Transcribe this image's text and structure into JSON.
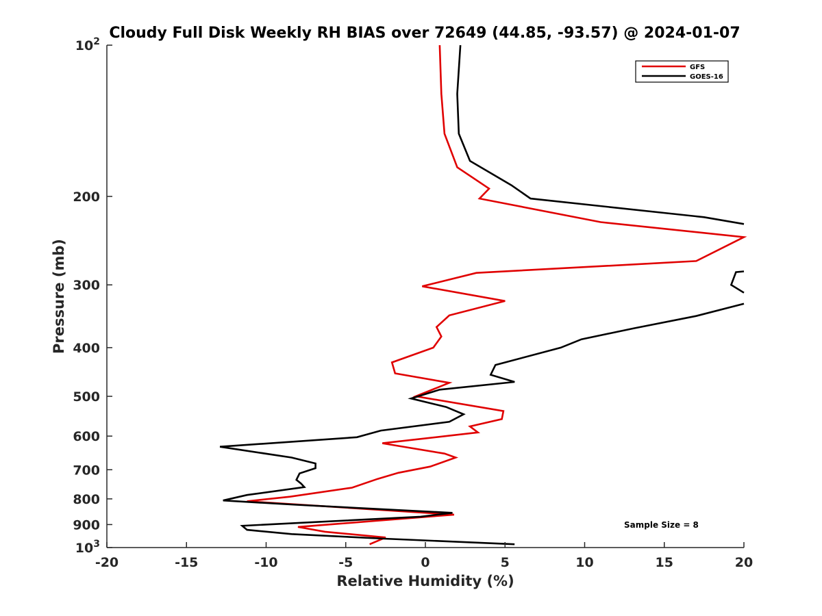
{
  "chart_data": {
    "type": "line",
    "title": "Cloudy Full Disk Weekly RH BIAS over 72649 (44.85, -93.57) @ 2024-01-07",
    "xlabel": "Relative Humidity (%)",
    "ylabel": "Pressure (mb)",
    "xlim": [
      -20,
      20
    ],
    "ylim": [
      100,
      1000
    ],
    "y_scale": "log",
    "y_reversed": true,
    "grid": false,
    "legend_position": "top-right",
    "x_ticks": [
      "-20",
      "-15",
      "-10",
      "-5",
      "0",
      "5",
      "10",
      "15",
      "20"
    ],
    "y_ticks": [
      {
        "value": 100,
        "base": "10",
        "exp": "2"
      },
      {
        "value": 200,
        "label": "200"
      },
      {
        "value": 300,
        "label": "300"
      },
      {
        "value": 400,
        "label": "400"
      },
      {
        "value": 500,
        "label": "500"
      },
      {
        "value": 600,
        "label": "600"
      },
      {
        "value": 700,
        "label": "700"
      },
      {
        "value": 800,
        "label": "800"
      },
      {
        "value": 900,
        "label": "900"
      },
      {
        "value": 1000,
        "base": "10",
        "exp": "3"
      }
    ],
    "annotation": "Sample Size = 8",
    "series": [
      {
        "name": "GFS",
        "color": "#e00000",
        "points": [
          [
            0.9,
            100
          ],
          [
            1.0,
            125
          ],
          [
            1.2,
            150
          ],
          [
            2.0,
            175
          ],
          [
            4.0,
            193
          ],
          [
            3.4,
            202
          ],
          [
            11.0,
            225
          ],
          [
            20.0,
            241
          ],
          [
            17.0,
            269
          ],
          [
            3.2,
            284
          ],
          [
            -0.2,
            302
          ],
          [
            5.0,
            323
          ],
          [
            1.5,
            345
          ],
          [
            0.7,
            364
          ],
          [
            1.0,
            380
          ],
          [
            0.5,
            400
          ],
          [
            -2.1,
            428
          ],
          [
            -1.9,
            450
          ],
          [
            1.5,
            470
          ],
          [
            -0.6,
            500
          ],
          [
            4.9,
            535
          ],
          [
            4.8,
            555
          ],
          [
            2.8,
            574
          ],
          [
            3.3,
            590
          ],
          [
            -2.7,
            620
          ],
          [
            1.2,
            650
          ],
          [
            1.9,
            662
          ],
          [
            0.3,
            690
          ],
          [
            -1.7,
            710
          ],
          [
            -3.0,
            730
          ],
          [
            -4.6,
            760
          ],
          [
            -8.5,
            792
          ],
          [
            -11.2,
            809
          ],
          [
            1.8,
            860
          ],
          [
            -8.0,
            910
          ],
          [
            -6.3,
            930
          ],
          [
            -2.5,
            955
          ],
          [
            -3.5,
            985
          ]
        ]
      },
      {
        "name": "GOES-16",
        "color": "#000000",
        "points": [
          [
            2.2,
            100
          ],
          [
            2.0,
            125
          ],
          [
            2.1,
            150
          ],
          [
            2.8,
            170
          ],
          [
            5.4,
            190
          ],
          [
            6.6,
            202
          ],
          [
            17.5,
            220
          ],
          [
            20.0,
            227
          ],
          [
            null,
            null
          ],
          [
            20.0,
            282
          ],
          [
            19.5,
            283
          ],
          [
            19.2,
            300
          ],
          [
            20.0,
            311
          ],
          [
            null,
            null
          ],
          [
            20.0,
            327
          ],
          [
            17.0,
            346
          ],
          [
            13.1,
            366
          ],
          [
            9.8,
            385
          ],
          [
            8.5,
            400
          ],
          [
            4.4,
            433
          ],
          [
            4.1,
            453
          ],
          [
            5.6,
            468
          ],
          [
            0.9,
            485
          ],
          [
            -0.9,
            505
          ],
          [
            1.3,
            525
          ],
          [
            2.4,
            543
          ],
          [
            1.5,
            562
          ],
          [
            -2.8,
            585
          ],
          [
            -4.3,
            603
          ],
          [
            -12.9,
            630
          ],
          [
            -8.4,
            662
          ],
          [
            -6.9,
            680
          ],
          [
            -6.9,
            695
          ],
          [
            -7.9,
            712
          ],
          [
            -8.1,
            733
          ],
          [
            -7.8,
            746
          ],
          [
            -7.6,
            758
          ],
          [
            -11.2,
            786
          ],
          [
            -12.7,
            806
          ],
          [
            -8.1,
            822
          ],
          [
            1.7,
            853
          ],
          [
            -0.3,
            868
          ],
          [
            -11.5,
            905
          ],
          [
            -11.2,
            922
          ],
          [
            -8.4,
            940
          ],
          [
            -2.6,
            960
          ],
          [
            5.6,
            985
          ]
        ]
      }
    ]
  }
}
